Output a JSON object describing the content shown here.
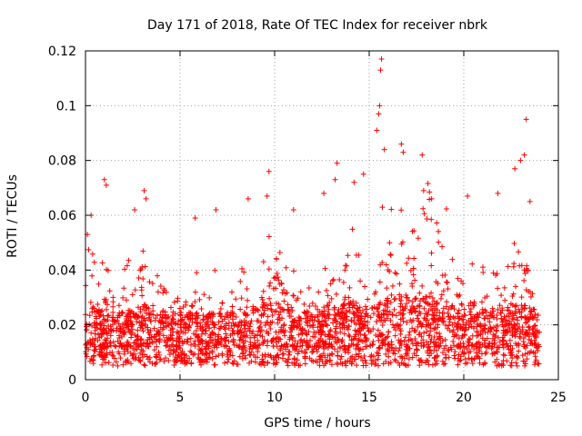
{
  "chart_data": {
    "type": "scatter",
    "title": "Day 171 of 2018, Rate Of TEC Index for receiver nbrk",
    "xlabel": "GPS time / hours",
    "ylabel": "ROTI / TECUs",
    "xlim": [
      0,
      25
    ],
    "ylim": [
      0,
      0.12
    ],
    "x_ticks": [
      0,
      5,
      10,
      15,
      20,
      25
    ],
    "x_tick_labels": [
      "0",
      "5",
      "10",
      "15",
      "20",
      "25"
    ],
    "y_ticks": [
      0,
      0.02,
      0.04,
      0.06,
      0.08,
      0.1,
      0.12
    ],
    "y_tick_labels": [
      "0",
      "0.02",
      "0.04",
      "0.06",
      "0.08",
      "0.1",
      "0.12"
    ],
    "grid": true,
    "marker": "+",
    "series": [
      {
        "name": "ROTI",
        "color": "#ff0000",
        "x_range": [
          0,
          24
        ],
        "typical_band": [
          0.005,
          0.025
        ],
        "outliers": [
          {
            "x": 0.1,
            "y": 0.053
          },
          {
            "x": 0.3,
            "y": 0.06
          },
          {
            "x": 1.0,
            "y": 0.073
          },
          {
            "x": 1.1,
            "y": 0.071
          },
          {
            "x": 2.6,
            "y": 0.062
          },
          {
            "x": 3.1,
            "y": 0.069
          },
          {
            "x": 3.2,
            "y": 0.066
          },
          {
            "x": 5.8,
            "y": 0.059
          },
          {
            "x": 6.9,
            "y": 0.062
          },
          {
            "x": 8.6,
            "y": 0.066
          },
          {
            "x": 9.6,
            "y": 0.067
          },
          {
            "x": 9.7,
            "y": 0.076
          },
          {
            "x": 11.0,
            "y": 0.062
          },
          {
            "x": 12.6,
            "y": 0.068
          },
          {
            "x": 13.2,
            "y": 0.073
          },
          {
            "x": 13.3,
            "y": 0.079
          },
          {
            "x": 14.2,
            "y": 0.072
          },
          {
            "x": 14.7,
            "y": 0.075
          },
          {
            "x": 15.4,
            "y": 0.091
          },
          {
            "x": 15.5,
            "y": 0.097
          },
          {
            "x": 15.55,
            "y": 0.1
          },
          {
            "x": 15.6,
            "y": 0.113
          },
          {
            "x": 15.65,
            "y": 0.117
          },
          {
            "x": 15.8,
            "y": 0.084
          },
          {
            "x": 16.7,
            "y": 0.086
          },
          {
            "x": 16.8,
            "y": 0.083
          },
          {
            "x": 17.8,
            "y": 0.082
          },
          {
            "x": 18.3,
            "y": 0.066
          },
          {
            "x": 20.2,
            "y": 0.067
          },
          {
            "x": 21.8,
            "y": 0.068
          },
          {
            "x": 22.7,
            "y": 0.077
          },
          {
            "x": 23.0,
            "y": 0.08
          },
          {
            "x": 23.2,
            "y": 0.082
          },
          {
            "x": 23.3,
            "y": 0.095
          },
          {
            "x": 23.5,
            "y": 0.065
          }
        ]
      }
    ]
  }
}
